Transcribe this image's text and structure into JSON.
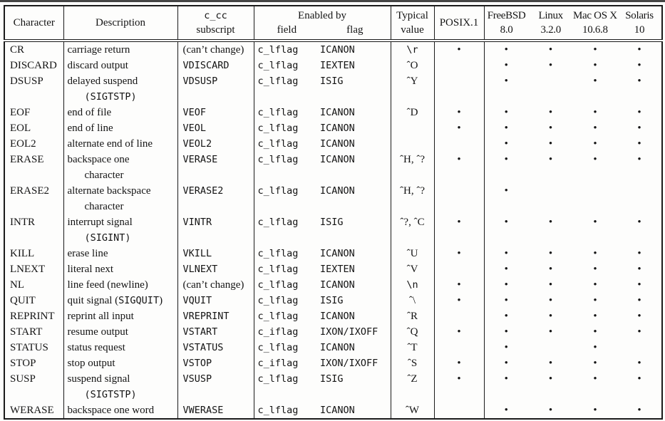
{
  "colors": {
    "border": "#1a1a1a",
    "text": "#141414",
    "background": "#ffffff",
    "top_rule": "#454545"
  },
  "table": {
    "headers": {
      "character": "Character",
      "description": "Description",
      "ccc_line1": "c_cc",
      "ccc_line2": "subscript",
      "enabled_by": "Enabled by",
      "field": "field",
      "flag": "flag",
      "typical_line1": "Typical",
      "typical_line2": "value",
      "posix": "POSIX.1",
      "platforms": [
        {
          "name": "FreeBSD",
          "version": "8.0"
        },
        {
          "name": "Linux",
          "version": "3.2.0"
        },
        {
          "name": "Mac OS X",
          "version": "10.6.8"
        },
        {
          "name": "Solaris",
          "version": "10"
        }
      ]
    },
    "rows": [
      {
        "character": "CR",
        "desc": [
          [
            [
              "carriage return",
              0
            ]
          ]
        ],
        "subscript": "(can’t change)",
        "sub_mono": 0,
        "field": "c_lflag",
        "flag": "ICANON",
        "typical": "\\r",
        "typ_mono": 1,
        "support": [
          1,
          1,
          1,
          1,
          1
        ]
      },
      {
        "character": "DISCARD",
        "desc": [
          [
            [
              "discard output",
              0
            ]
          ]
        ],
        "subscript": "VDISCARD",
        "sub_mono": 1,
        "field": "c_lflag",
        "flag": "IEXTEN",
        "typical": "ˆO",
        "typ_mono": 0,
        "support": [
          0,
          1,
          1,
          1,
          1
        ]
      },
      {
        "character": "DSUSP",
        "desc": [
          [
            [
              "delayed suspend",
              0
            ]
          ],
          [
            [
              "(SIGTSTP)",
              1
            ]
          ]
        ],
        "subscript": "VDSUSP",
        "sub_mono": 1,
        "field": "c_lflag",
        "flag": "ISIG",
        "typical": "ˆY",
        "typ_mono": 0,
        "support": [
          0,
          1,
          0,
          1,
          1
        ]
      },
      {
        "character": "EOF",
        "desc": [
          [
            [
              "end of file",
              0
            ]
          ]
        ],
        "subscript": "VEOF",
        "sub_mono": 1,
        "field": "c_lflag",
        "flag": "ICANON",
        "typical": "ˆD",
        "typ_mono": 0,
        "support": [
          1,
          1,
          1,
          1,
          1
        ]
      },
      {
        "character": "EOL",
        "desc": [
          [
            [
              "end of line",
              0
            ]
          ]
        ],
        "subscript": "VEOL",
        "sub_mono": 1,
        "field": "c_lflag",
        "flag": "ICANON",
        "typical": "",
        "typ_mono": 0,
        "support": [
          1,
          1,
          1,
          1,
          1
        ]
      },
      {
        "character": "EOL2",
        "desc": [
          [
            [
              "alternate end of line",
              0
            ]
          ]
        ],
        "subscript": "VEOL2",
        "sub_mono": 1,
        "field": "c_lflag",
        "flag": "ICANON",
        "typical": "",
        "typ_mono": 0,
        "support": [
          0,
          1,
          1,
          1,
          1
        ]
      },
      {
        "character": "ERASE",
        "desc": [
          [
            [
              "backspace one",
              0
            ]
          ],
          [
            [
              "character",
              0
            ]
          ]
        ],
        "subscript": "VERASE",
        "sub_mono": 1,
        "field": "c_lflag",
        "flag": "ICANON",
        "typical": "ˆH, ˆ?",
        "typ_mono": 0,
        "support": [
          1,
          1,
          1,
          1,
          1
        ]
      },
      {
        "character": "ERASE2",
        "desc": [
          [
            [
              "alternate backspace",
              0
            ]
          ],
          [
            [
              "character",
              0
            ]
          ]
        ],
        "subscript": "VERASE2",
        "sub_mono": 1,
        "field": "c_lflag",
        "flag": "ICANON",
        "typical": "ˆH, ˆ?",
        "typ_mono": 0,
        "support": [
          0,
          1,
          0,
          0,
          0
        ]
      },
      {
        "character": "INTR",
        "desc": [
          [
            [
              "interrupt signal",
              0
            ]
          ],
          [
            [
              "(SIGINT)",
              1
            ]
          ]
        ],
        "subscript": "VINTR",
        "sub_mono": 1,
        "field": "c_lflag",
        "flag": "ISIG",
        "typical": "ˆ?, ˆC",
        "typ_mono": 0,
        "support": [
          1,
          1,
          1,
          1,
          1
        ]
      },
      {
        "character": "KILL",
        "desc": [
          [
            [
              "erase line",
              0
            ]
          ]
        ],
        "subscript": "VKILL",
        "sub_mono": 1,
        "field": "c_lflag",
        "flag": "ICANON",
        "typical": "ˆU",
        "typ_mono": 0,
        "support": [
          1,
          1,
          1,
          1,
          1
        ]
      },
      {
        "character": "LNEXT",
        "desc": [
          [
            [
              "literal next",
              0
            ]
          ]
        ],
        "subscript": "VLNEXT",
        "sub_mono": 1,
        "field": "c_lflag",
        "flag": "IEXTEN",
        "typical": "ˆV",
        "typ_mono": 0,
        "support": [
          0,
          1,
          1,
          1,
          1
        ]
      },
      {
        "character": "NL",
        "desc": [
          [
            [
              "line feed (newline)",
              0
            ]
          ]
        ],
        "subscript": "(can’t change)",
        "sub_mono": 0,
        "field": "c_lflag",
        "flag": "ICANON",
        "typical": "\\n",
        "typ_mono": 1,
        "support": [
          1,
          1,
          1,
          1,
          1
        ]
      },
      {
        "character": "QUIT",
        "desc": [
          [
            [
              "quit signal (",
              0
            ],
            [
              "SIGQUIT",
              1
            ],
            [
              ")",
              0
            ]
          ]
        ],
        "subscript": "VQUIT",
        "sub_mono": 1,
        "field": "c_lflag",
        "flag": "ISIG",
        "typical": "ˆ\\",
        "typ_mono": 0,
        "support": [
          1,
          1,
          1,
          1,
          1
        ]
      },
      {
        "character": "REPRINT",
        "desc": [
          [
            [
              "reprint all input",
              0
            ]
          ]
        ],
        "subscript": "VREPRINT",
        "sub_mono": 1,
        "field": "c_lflag",
        "flag": "ICANON",
        "typical": "ˆR",
        "typ_mono": 0,
        "support": [
          0,
          1,
          1,
          1,
          1
        ]
      },
      {
        "character": "START",
        "desc": [
          [
            [
              "resume output",
              0
            ]
          ]
        ],
        "subscript": "VSTART",
        "sub_mono": 1,
        "field": "c_iflag",
        "flag": "IXON/IXOFF",
        "typical": "ˆQ",
        "typ_mono": 0,
        "support": [
          1,
          1,
          1,
          1,
          1
        ]
      },
      {
        "character": "STATUS",
        "desc": [
          [
            [
              "status request",
              0
            ]
          ]
        ],
        "subscript": "VSTATUS",
        "sub_mono": 1,
        "field": "c_lflag",
        "flag": "ICANON",
        "typical": "ˆT",
        "typ_mono": 0,
        "support": [
          0,
          1,
          0,
          1,
          0
        ]
      },
      {
        "character": "STOP",
        "desc": [
          [
            [
              "stop output",
              0
            ]
          ]
        ],
        "subscript": "VSTOP",
        "sub_mono": 1,
        "field": "c_iflag",
        "flag": "IXON/IXOFF",
        "typical": "ˆS",
        "typ_mono": 0,
        "support": [
          1,
          1,
          1,
          1,
          1
        ]
      },
      {
        "character": "SUSP",
        "desc": [
          [
            [
              "suspend signal",
              0
            ]
          ],
          [
            [
              "(SIGTSTP)",
              1
            ]
          ]
        ],
        "subscript": "VSUSP",
        "sub_mono": 1,
        "field": "c_lflag",
        "flag": "ISIG",
        "typical": "ˆZ",
        "typ_mono": 0,
        "support": [
          1,
          1,
          1,
          1,
          1
        ]
      },
      {
        "character": "WERASE",
        "desc": [
          [
            [
              "backspace one word",
              0
            ]
          ]
        ],
        "subscript": "VWERASE",
        "sub_mono": 1,
        "field": "c_lflag",
        "flag": "ICANON",
        "typical": "ˆW",
        "typ_mono": 0,
        "support": [
          0,
          1,
          1,
          1,
          1
        ]
      }
    ]
  }
}
